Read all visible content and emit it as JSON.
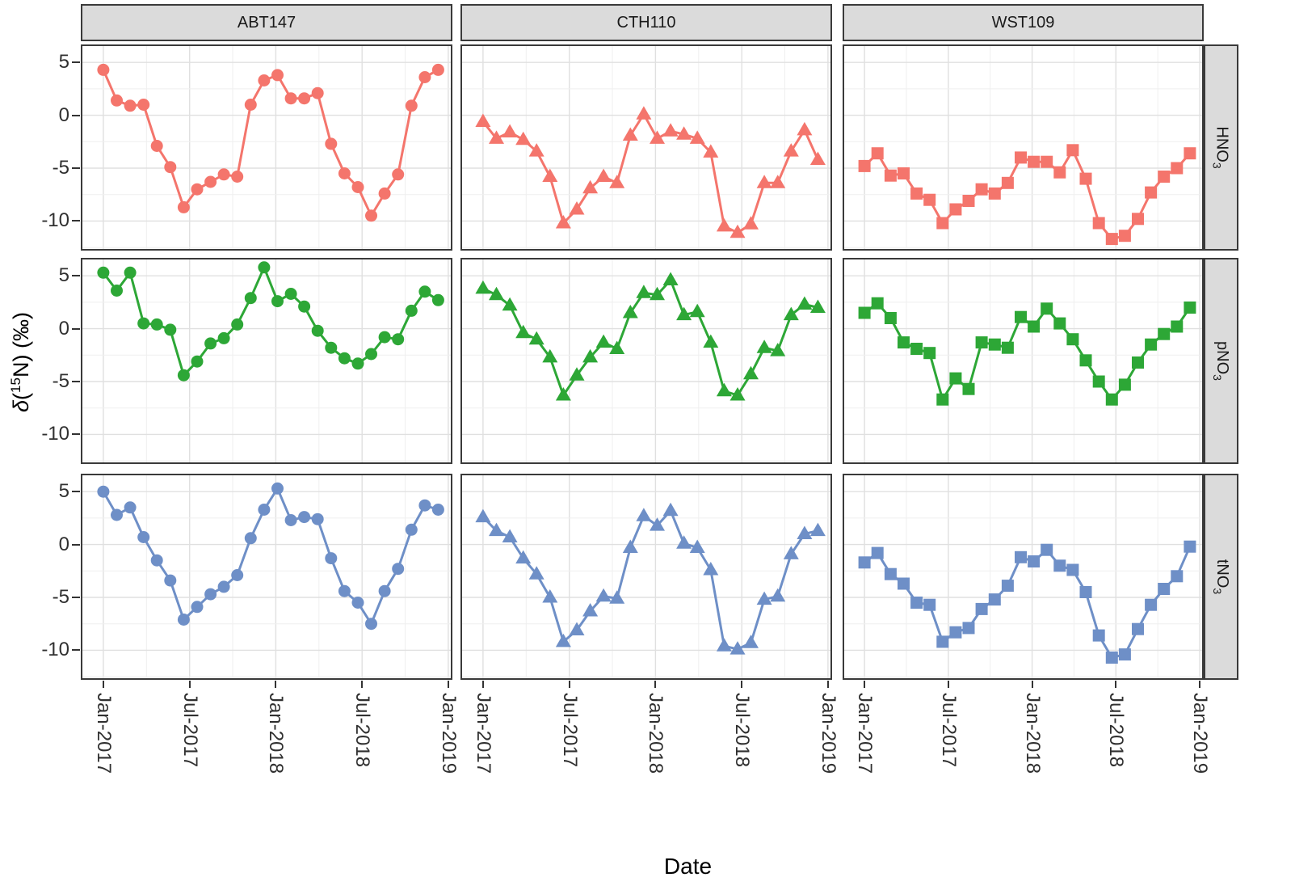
{
  "figure": {
    "x_axis_title": "Date",
    "y_title_p1": "δ",
    "y_title_p2": "(",
    "y_title_sup": "15",
    "y_title_p3": "N) (‰)"
  },
  "chart_data": {
    "type": "line",
    "title": "",
    "xlabel": "Date",
    "ylabel": "δ(15N) (‰)",
    "facet_layout": "3 site columns × 3 species rows, shared axes",
    "x_tick_labels": [
      "Jan-2017",
      "Jul-2017",
      "Jan-2018",
      "Jul-2018",
      "Jan-2019"
    ],
    "y_tick_values": [
      5,
      0,
      -5,
      -10
    ],
    "ylim": [
      -12.8,
      6.7
    ],
    "x_range": [
      "Jan-2017",
      "Jan-2019"
    ],
    "n_points_per_series": 26,
    "grid": "major + minor, light grey on white",
    "legend_position": "none",
    "site_columns": [
      {
        "label": "ABT147",
        "marker": "circle"
      },
      {
        "label": "CTH110",
        "marker": "triangle"
      },
      {
        "label": "WST109",
        "marker": "square"
      }
    ],
    "species_rows": [
      {
        "label_main": "HNO",
        "label_sub": "3",
        "label_full": "HNO3",
        "color": "#F4756C"
      },
      {
        "label_main": "pNO",
        "label_sub": "3",
        "label_full": "pNO3",
        "color": "#2DA736"
      },
      {
        "label_main": "tNO",
        "label_sub": "3",
        "label_full": "tNO3",
        "color": "#6E8FC7"
      }
    ],
    "panels": [
      {
        "site": "ABT147",
        "species": "HNO3",
        "values": [
          4.3,
          1.4,
          0.9,
          1.0,
          -2.9,
          -4.9,
          -8.7,
          -7.0,
          -6.3,
          -5.6,
          -5.8,
          1.0,
          3.3,
          3.8,
          1.6,
          1.6,
          2.1,
          -2.7,
          -5.5,
          -6.8,
          -9.5,
          -7.4,
          -5.6,
          0.9,
          3.6,
          4.3
        ]
      },
      {
        "site": "CTH110",
        "species": "HNO3",
        "values": [
          -0.6,
          -2.2,
          -1.6,
          -2.3,
          -3.4,
          -5.8,
          -10.2,
          -8.9,
          -6.9,
          -5.8,
          -6.4,
          -1.9,
          0.1,
          -2.2,
          -1.5,
          -1.8,
          -2.2,
          -3.5,
          -10.5,
          -11.1,
          -10.3,
          -6.4,
          -6.4,
          -3.4,
          -1.4,
          -4.2
        ]
      },
      {
        "site": "WST109",
        "species": "HNO3",
        "values": [
          -4.8,
          -3.6,
          -5.7,
          -5.5,
          -7.4,
          -8.0,
          -10.2,
          -8.9,
          -8.1,
          -7.0,
          -7.4,
          -6.4,
          -4.0,
          -4.4,
          -4.4,
          -5.4,
          -3.3,
          -6.0,
          -10.2,
          -11.7,
          -11.4,
          -9.8,
          -7.3,
          -5.8,
          -5.0,
          -3.6
        ]
      },
      {
        "site": "ABT147",
        "species": "pNO3",
        "values": [
          5.3,
          3.6,
          5.3,
          0.5,
          0.4,
          -0.1,
          -4.4,
          -3.1,
          -1.4,
          -0.9,
          0.4,
          2.9,
          5.8,
          2.6,
          3.3,
          2.1,
          -0.2,
          -1.8,
          -2.8,
          -3.3,
          -2.4,
          -0.8,
          -1.0,
          1.7,
          3.5,
          2.7
        ]
      },
      {
        "site": "CTH110",
        "species": "pNO3",
        "values": [
          3.8,
          3.2,
          2.2,
          -0.4,
          -1.0,
          -2.7,
          -6.3,
          -4.4,
          -2.7,
          -1.3,
          -1.9,
          1.5,
          3.4,
          3.2,
          4.6,
          1.3,
          1.6,
          -1.3,
          -5.9,
          -6.3,
          -4.3,
          -1.8,
          -2.1,
          1.3,
          2.3,
          2.0
        ]
      },
      {
        "site": "WST109",
        "species": "pNO3",
        "values": [
          1.5,
          2.4,
          1.0,
          -1.3,
          -1.9,
          -2.3,
          -6.7,
          -4.7,
          -5.7,
          -1.3,
          -1.5,
          -1.8,
          1.1,
          0.2,
          1.9,
          0.5,
          -1.0,
          -3.0,
          -5.0,
          -6.7,
          -5.3,
          -3.2,
          -1.5,
          -0.5,
          0.2,
          2.0
        ]
      },
      {
        "site": "ABT147",
        "species": "tNO3",
        "values": [
          5.0,
          2.8,
          3.5,
          0.7,
          -1.5,
          -3.4,
          -7.1,
          -5.9,
          -4.7,
          -4.0,
          -2.9,
          0.6,
          3.3,
          5.3,
          2.3,
          2.6,
          2.4,
          -1.3,
          -4.4,
          -5.5,
          -7.5,
          -4.4,
          -2.3,
          1.4,
          3.7,
          3.3
        ]
      },
      {
        "site": "CTH110",
        "species": "tNO3",
        "values": [
          2.6,
          1.3,
          0.7,
          -1.3,
          -2.8,
          -5.0,
          -9.2,
          -8.1,
          -6.3,
          -4.9,
          -5.1,
          -0.3,
          2.7,
          1.8,
          3.2,
          0.1,
          -0.3,
          -2.4,
          -9.6,
          -9.9,
          -9.3,
          -5.2,
          -4.9,
          -0.9,
          1.0,
          1.3
        ]
      },
      {
        "site": "WST109",
        "species": "tNO3",
        "values": [
          -1.7,
          -0.8,
          -2.8,
          -3.7,
          -5.5,
          -5.7,
          -9.2,
          -8.3,
          -7.9,
          -6.1,
          -5.2,
          -3.9,
          -1.2,
          -1.6,
          -0.5,
          -2.0,
          -2.4,
          -4.5,
          -8.6,
          -10.7,
          -10.4,
          -8.0,
          -5.7,
          -4.2,
          -3.0,
          -0.2
        ]
      }
    ]
  }
}
